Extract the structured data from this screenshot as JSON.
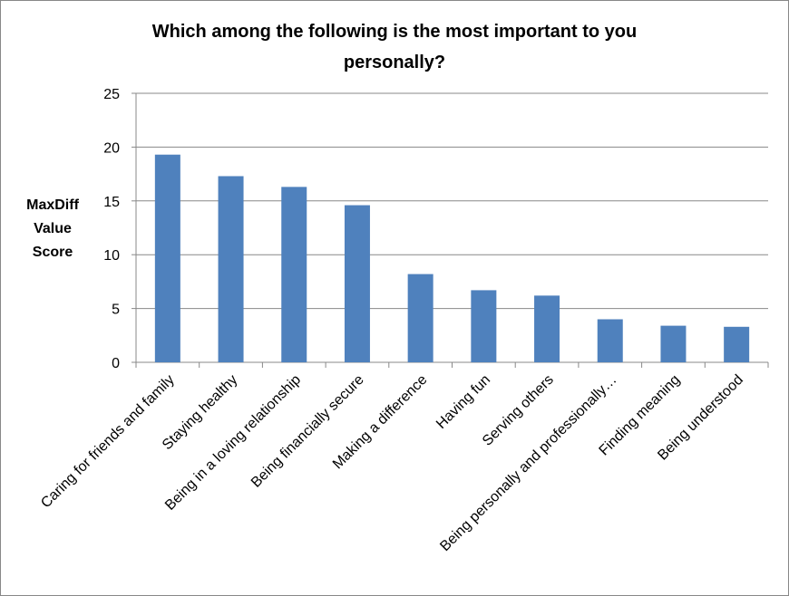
{
  "chart_data": {
    "type": "bar",
    "title": "Which among the following is the most important to you personally?",
    "y_label": "MaxDiff Value Score",
    "categories": [
      "Caring for friends and family",
      "Staying healthy",
      "Being in a loving relationship",
      "Being financially secure",
      "Making a difference",
      "Having fun",
      "Serving others",
      "Being personally and professionally…",
      "Finding meaning",
      "Being understood"
    ],
    "values": [
      19.3,
      17.3,
      16.3,
      14.6,
      8.2,
      6.7,
      6.2,
      4.0,
      3.4,
      3.3
    ],
    "color": "#4f81bd",
    "ylim": [
      0,
      25
    ],
    "yticks": [
      0,
      5,
      10,
      15,
      20,
      25
    ],
    "grid": true
  }
}
